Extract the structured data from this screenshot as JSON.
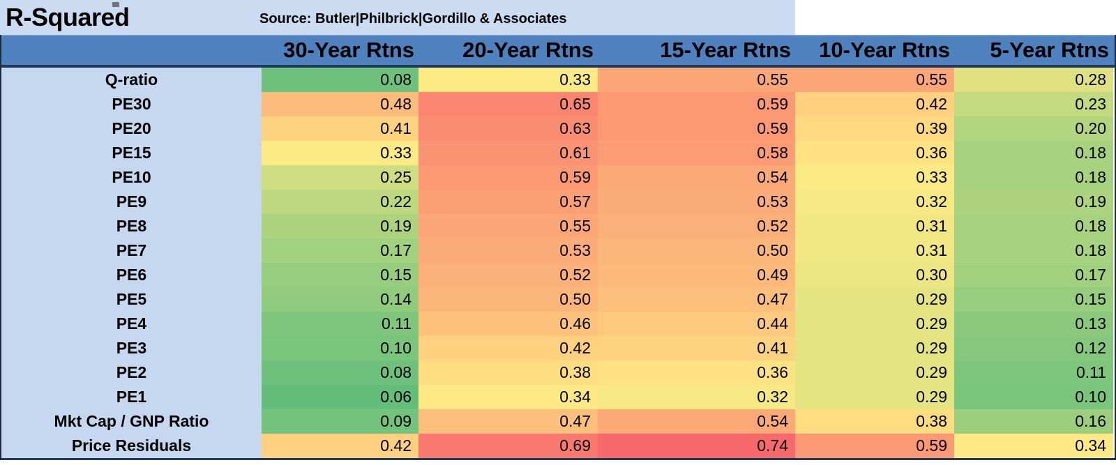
{
  "title": "R-Squared",
  "source": "Source: Butler|Philbrick|Gordillo & Associates",
  "colors": {
    "title_bar_bg": "#cbdcf2",
    "header_bg": "#4e81bd",
    "header_top_edge": "#6f9bcb",
    "header_bottom_edge": "#1e3a5f",
    "label_column_bg": "#c5d8f0",
    "outer_border": "#1c2b3a",
    "text": "#000000"
  },
  "chart_data": {
    "type": "heatmap",
    "title": "R-Squared",
    "source": "Source: Butler|Philbrick|Gordillo & Associates",
    "columns": [
      "30-Year Rtns",
      "20-Year Rtns",
      "15-Year Rtns",
      "10-Year Rtns",
      "5-Year Rtns"
    ],
    "rows": [
      "Q-ratio",
      "PE30",
      "PE20",
      "PE15",
      "PE10",
      "PE9",
      "PE8",
      "PE7",
      "PE6",
      "PE5",
      "PE4",
      "PE3",
      "PE2",
      "PE1",
      "Mkt Cap / GNP Ratio",
      "Price Residuals"
    ],
    "values": [
      [
        "0.08",
        "0.33",
        "0.55",
        "0.55",
        "0.28"
      ],
      [
        "0.48",
        "0.65",
        "0.59",
        "0.42",
        "0.23"
      ],
      [
        "0.41",
        "0.63",
        "0.59",
        "0.39",
        "0.20"
      ],
      [
        "0.33",
        "0.61",
        "0.58",
        "0.36",
        "0.18"
      ],
      [
        "0.25",
        "0.59",
        "0.54",
        "0.33",
        "0.18"
      ],
      [
        "0.22",
        "0.57",
        "0.53",
        "0.32",
        "0.19"
      ],
      [
        "0.19",
        "0.55",
        "0.52",
        "0.31",
        "0.18"
      ],
      [
        "0.17",
        "0.53",
        "0.50",
        "0.31",
        "0.18"
      ],
      [
        "0.15",
        "0.52",
        "0.49",
        "0.30",
        "0.17"
      ],
      [
        "0.14",
        "0.50",
        "0.47",
        "0.29",
        "0.15"
      ],
      [
        "0.11",
        "0.46",
        "0.44",
        "0.29",
        "0.13"
      ],
      [
        "0.10",
        "0.42",
        "0.41",
        "0.29",
        "0.12"
      ],
      [
        "0.08",
        "0.38",
        "0.36",
        "0.29",
        "0.11"
      ],
      [
        "0.06",
        "0.34",
        "0.32",
        "0.29",
        "0.10"
      ],
      [
        "0.09",
        "0.47",
        "0.54",
        "0.38",
        "0.16"
      ],
      [
        "0.42",
        "0.69",
        "0.74",
        "0.59",
        "0.34"
      ]
    ],
    "color_scale": {
      "description": "3-color scale: green at min, yellow at midpoint, red at max",
      "min_value": 0.06,
      "mid_value": 0.335,
      "max_value": 0.74,
      "min_color": "#63BE7B",
      "mid_color": "#FFEB84",
      "max_color": "#F8696B"
    },
    "layout": {
      "legend": "none",
      "grid": "off",
      "value_alignment": "right",
      "row_label_alignment": "center"
    }
  }
}
